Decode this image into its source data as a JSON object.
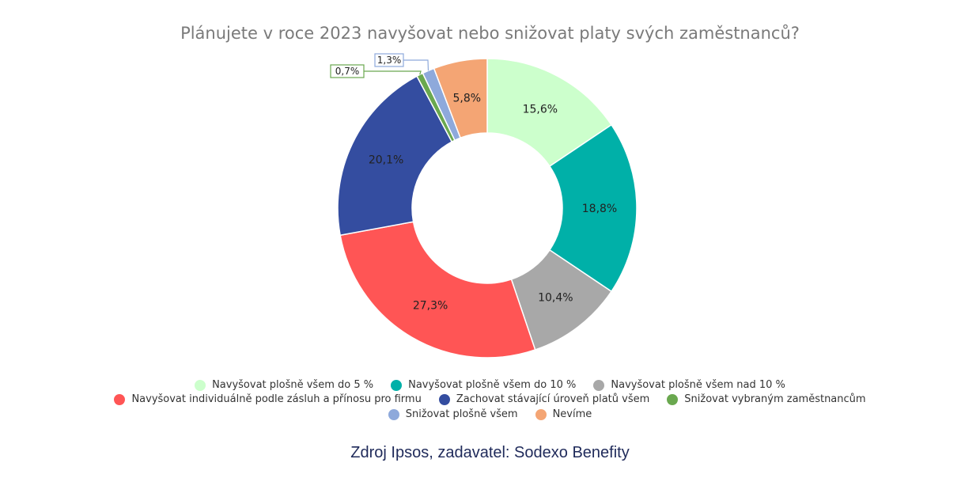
{
  "chart_data": {
    "type": "pie",
    "title": "Plánujete v roce 2023 navyšovat nebo snižovat platy svých zaměstnanců?",
    "slices": [
      {
        "label": "Navyšovat plošně všem do 5 %",
        "value": 15.6,
        "value_label": "15,6%",
        "color": "#ccffcc"
      },
      {
        "label": "Navyšovat plošně všem do 10 %",
        "value": 18.8,
        "value_label": "18,8%",
        "color": "#00b0a8"
      },
      {
        "label": "Navyšovat plošně všem nad 10 %",
        "value": 10.4,
        "value_label": "10,4%",
        "color": "#a8a8a8"
      },
      {
        "label": "Navyšovat individuálně podle zásluh a přínosu pro firmu",
        "value": 27.3,
        "value_label": "27,3%",
        "color": "#ff5555"
      },
      {
        "label": "Zachovat stávající úroveň platů všem",
        "value": 20.1,
        "value_label": "20,1%",
        "color": "#344da0"
      },
      {
        "label": "Snižovat vybraným zaměstnancům",
        "value": 0.7,
        "value_label": "0,7%",
        "color": "#6aa84f"
      },
      {
        "label": "Snižovat plošně všem",
        "value": 1.3,
        "value_label": "1,3%",
        "color": "#8ea9db"
      },
      {
        "label": "Nevíme",
        "value": 5.8,
        "value_label": "5,8%",
        "color": "#f4a574"
      }
    ],
    "legend_placement": "bottom"
  },
  "source": "Zdroj Ipsos, zadavatel: Sodexo Benefity"
}
